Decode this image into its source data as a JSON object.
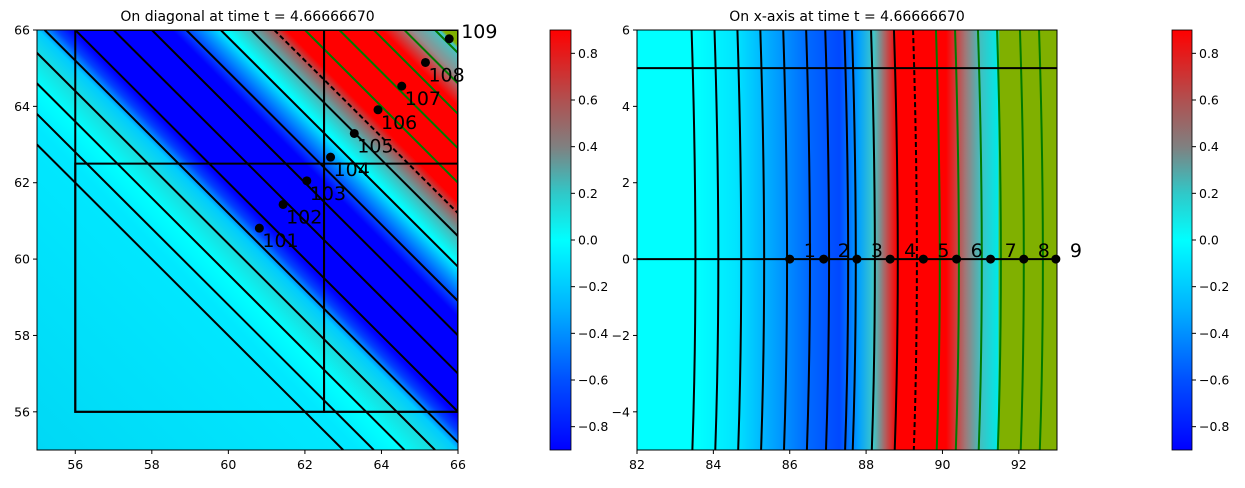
{
  "chart_data": [
    {
      "type": "heatmap",
      "title": "On diagonal at time t =     4.66666670",
      "xlim": [
        55,
        66
      ],
      "ylim": [
        55,
        66
      ],
      "xticks": [
        "56",
        "58",
        "60",
        "62",
        "64",
        "66"
      ],
      "xtick_values": [
        56,
        58,
        60,
        62,
        64,
        66
      ],
      "yticks": [
        "56",
        "58",
        "60",
        "62",
        "64",
        "66"
      ],
      "ytick_values": [
        56,
        58,
        60,
        62,
        64,
        66
      ],
      "field_axis": "x+y",
      "color_stops": [
        {
          "at": 110,
          "color": "#00d8f5"
        },
        {
          "at": 118.4,
          "color": "#00e8ff"
        },
        {
          "at": 119.5,
          "color": "#00ffff"
        },
        {
          "at": 120.3,
          "color": "#18e0e0"
        },
        {
          "at": 121,
          "color": "#00ccff"
        },
        {
          "at": 121.5,
          "color": "#0040ff"
        },
        {
          "at": 121.9,
          "color": "#0000ff"
        },
        {
          "at": 124.5,
          "color": "#0000ff"
        },
        {
          "at": 125.4,
          "color": "#00a0ff"
        },
        {
          "at": 125.9,
          "color": "#00ffff"
        },
        {
          "at": 126.5,
          "color": "#40c0c0"
        },
        {
          "at": 127.1,
          "color": "#a06060"
        },
        {
          "at": 127.5,
          "color": "#ff0000"
        },
        {
          "at": 130,
          "color": "#ff0000"
        },
        {
          "at": 130.8,
          "color": "#909090"
        },
        {
          "at": 131.5,
          "color": "#40c8c8"
        },
        {
          "at": 131.6,
          "color": "#80b000"
        },
        {
          "at": 132,
          "color": "#80b000"
        }
      ],
      "contours_black": [
        118,
        118.8,
        119.6,
        120.4,
        121.2,
        122,
        123,
        124,
        124.9,
        125.8,
        126.6
      ],
      "contour_dashed": [
        127.2
      ],
      "contours_green": [
        128,
        128.9,
        129.8,
        130.6,
        131.4,
        132.2
      ],
      "boxes": [
        {
          "x": [
            56,
            62.5
          ],
          "y": [
            56,
            66
          ]
        },
        {
          "x": [
            56,
            66
          ],
          "y": [
            56,
            62.5
          ]
        },
        {
          "x": [
            62.5,
            66
          ],
          "y": [
            56,
            66
          ]
        }
      ],
      "points": [
        {
          "label": "101",
          "x": 60.81,
          "y": 60.81
        },
        {
          "label": "102",
          "x": 61.43,
          "y": 61.43
        },
        {
          "label": "103",
          "x": 62.05,
          "y": 62.05
        },
        {
          "label": "104",
          "x": 62.67,
          "y": 62.67
        },
        {
          "label": "105",
          "x": 63.29,
          "y": 63.29
        },
        {
          "label": "106",
          "x": 63.91,
          "y": 63.91
        },
        {
          "label": "107",
          "x": 64.53,
          "y": 64.53
        },
        {
          "label": "108",
          "x": 65.15,
          "y": 65.15
        },
        {
          "label": "109",
          "x": 65.77,
          "y": 65.77
        }
      ],
      "colorbar": {
        "range": [
          -0.9,
          0.9
        ],
        "ticks": [
          "−0.8",
          "−0.6",
          "−0.4",
          "−0.2",
          "0.0",
          "0.2",
          "0.4",
          "0.6",
          "0.8"
        ],
        "tick_values": [
          -0.8,
          -0.6,
          -0.4,
          -0.2,
          0,
          0.2,
          0.4,
          0.6,
          0.8
        ]
      }
    },
    {
      "type": "heatmap",
      "title": "On x-axis at time t =     4.66666670",
      "xlim": [
        82,
        93
      ],
      "ylim": [
        -5,
        6
      ],
      "xticks": [
        "82",
        "84",
        "86",
        "88",
        "90",
        "92"
      ],
      "xtick_values": [
        82,
        84,
        86,
        88,
        90,
        92
      ],
      "yticks": [
        "−4",
        "−2",
        "0",
        "2",
        "4",
        "6"
      ],
      "ytick_values": [
        -4,
        -2,
        0,
        2,
        4,
        6
      ],
      "field_axis": "x",
      "color_stops": [
        {
          "at": 82,
          "color": "#00ffff"
        },
        {
          "at": 83.6,
          "color": "#00ffff"
        },
        {
          "at": 84.6,
          "color": "#00e4ff"
        },
        {
          "at": 85.5,
          "color": "#00a8ff"
        },
        {
          "at": 86.5,
          "color": "#0068ff"
        },
        {
          "at": 87.3,
          "color": "#0048ff"
        },
        {
          "at": 87.8,
          "color": "#00a0ff"
        },
        {
          "at": 88.2,
          "color": "#40c8c8"
        },
        {
          "at": 88.5,
          "color": "#b06060"
        },
        {
          "at": 88.8,
          "color": "#ff0000"
        },
        {
          "at": 90.1,
          "color": "#ff0000"
        },
        {
          "at": 90.6,
          "color": "#a07878"
        },
        {
          "at": 91.0,
          "color": "#40c0c0"
        },
        {
          "at": 91.45,
          "color": "#00e8e8"
        },
        {
          "at": 91.5,
          "color": "#80b000"
        },
        {
          "at": 93,
          "color": "#80b000"
        }
      ],
      "contours_black": [
        83.5,
        84.1,
        84.7,
        85.3,
        85.9,
        86.5,
        87.0,
        87.5,
        87.7,
        88.2,
        88.8
      ],
      "contour_dashed": [
        89.3
      ],
      "contours_green": [
        89.9,
        90.4,
        91.0,
        91.5,
        92.1,
        92.6
      ],
      "hlines": [
        5,
        0
      ],
      "points": [
        {
          "label": "1",
          "x": 86.0,
          "y": 0
        },
        {
          "label": "2",
          "x": 86.89,
          "y": 0
        },
        {
          "label": "3",
          "x": 87.76,
          "y": 0
        },
        {
          "label": "4",
          "x": 88.63,
          "y": 0
        },
        {
          "label": "5",
          "x": 89.5,
          "y": 0
        },
        {
          "label": "6",
          "x": 90.37,
          "y": 0
        },
        {
          "label": "7",
          "x": 91.26,
          "y": 0
        },
        {
          "label": "8",
          "x": 92.13,
          "y": 0
        },
        {
          "label": "9",
          "x": 92.97,
          "y": 0
        }
      ],
      "colorbar": {
        "range": [
          -0.9,
          0.9
        ],
        "ticks": [
          "−0.8",
          "−0.6",
          "−0.4",
          "−0.2",
          "0.0",
          "0.2",
          "0.4",
          "0.6",
          "0.8"
        ],
        "tick_values": [
          -0.8,
          -0.6,
          -0.4,
          -0.2,
          0,
          0.2,
          0.4,
          0.6,
          0.8
        ]
      }
    }
  ],
  "colormap": [
    {
      "v": -0.9,
      "color": "#0000ff"
    },
    {
      "v": -0.6,
      "color": "#0050ff"
    },
    {
      "v": -0.3,
      "color": "#00b0ff"
    },
    {
      "v": 0,
      "color": "#00ffff"
    },
    {
      "v": 0.2,
      "color": "#30c8c8"
    },
    {
      "v": 0.4,
      "color": "#808080"
    },
    {
      "v": 0.6,
      "color": "#b05050"
    },
    {
      "v": 0.9,
      "color": "#ff0000"
    }
  ]
}
